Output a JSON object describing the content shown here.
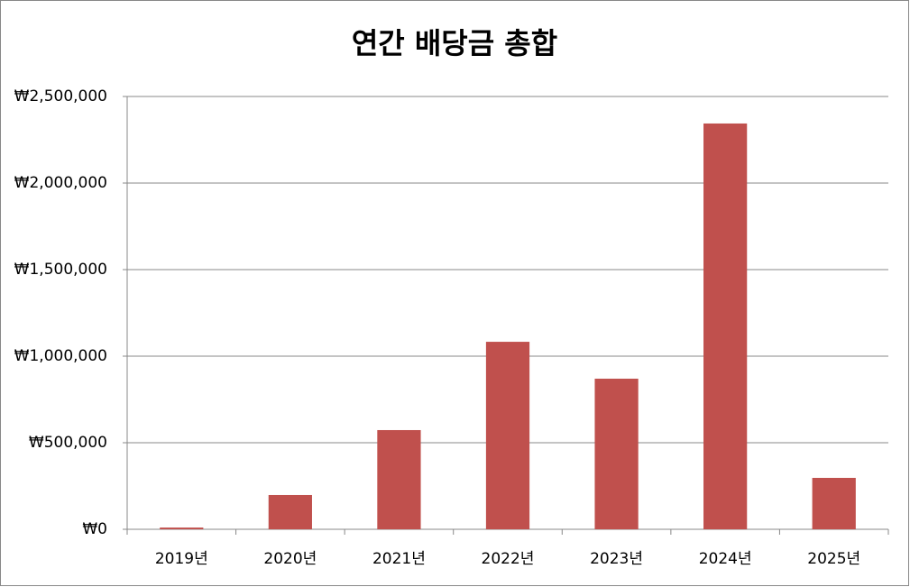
{
  "chart_data": {
    "type": "bar",
    "title": "연간 배당금 총합",
    "categories": [
      "2019년",
      "2020년",
      "2021년",
      "2022년",
      "2023년",
      "2024년",
      "2025년"
    ],
    "values": [
      10000,
      198000,
      573000,
      1083000,
      870000,
      2344000,
      297000
    ],
    "color": "#c0504d",
    "ylim": [
      0,
      2500000
    ],
    "yticks": [
      {
        "value": 0,
        "label": "₩0"
      },
      {
        "value": 500000,
        "label": "₩500,000"
      },
      {
        "value": 1000000,
        "label": "₩1,000,000"
      },
      {
        "value": 1500000,
        "label": "₩1,500,000"
      },
      {
        "value": 2000000,
        "label": "₩2,000,000"
      },
      {
        "value": 2500000,
        "label": "₩2,500,000"
      }
    ],
    "grid": true
  }
}
